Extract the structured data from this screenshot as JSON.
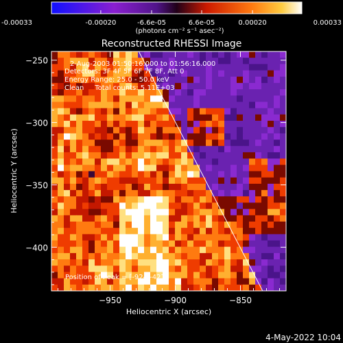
{
  "colorbar": {
    "tick_labels": [
      "-0.00033",
      "-0.00020",
      "-6.6e-05",
      "6.6e-05",
      "0.00020",
      "0.00033"
    ],
    "tick_values": [
      -0.00033,
      -0.0002,
      -6.6e-05,
      6.6e-05,
      0.0002,
      0.00033
    ],
    "range": [
      -0.00033,
      0.00033
    ],
    "unit_label": "(photons cm⁻² s⁻¹ asec⁻²)"
  },
  "chart_data": {
    "type": "heatmap",
    "title": "Reconstructed RHESSI Image",
    "xlabel": "Heliocentric X (arcsec)",
    "ylabel": "Heliocentric Y (arcsec)",
    "xlim": [
      -995,
      -815
    ],
    "ylim": [
      -435,
      -243
    ],
    "x_ticks": [
      -950,
      -900,
      -850
    ],
    "x_tick_labels": [
      "−950",
      "−900",
      "−850"
    ],
    "y_ticks": [
      -250,
      -300,
      -350,
      -400
    ],
    "y_tick_labels": [
      "−250",
      "−300",
      "−350",
      "−400"
    ],
    "limb_line": [
      [
        -928,
        -243
      ],
      [
        -833,
        -435
      ]
    ],
    "peak": [
      -924,
      -427
    ],
    "colormap": [
      "#000000",
      "#0000ff",
      "#8a1fd0",
      "#7a2aa0",
      "#50148a",
      "#300030",
      "#cc2000",
      "#ff6a10",
      "#ffcc40",
      "#ffffff"
    ],
    "annotations": [
      "2-Aug-2003 01:50:16.000 to 01:56:16.000",
      "Detectors: 3F 4F 5F 6F 7F 8F, Att 0",
      "Energy Range: 25.0 - 50.0 keV",
      "Clean     Total counts: 5.11E+03"
    ],
    "peak_label": "Position of Peak = [-924,-427]"
  },
  "timestamp": "4-May-2022 10:04"
}
